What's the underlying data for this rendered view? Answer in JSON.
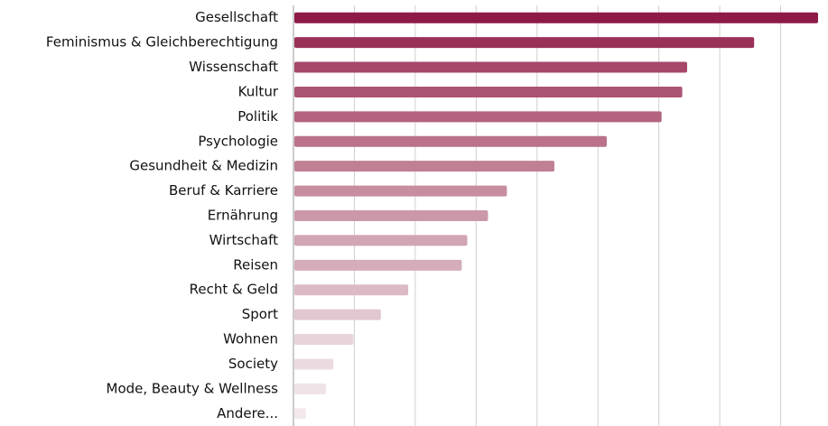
{
  "chart_data": {
    "type": "bar",
    "orientation": "horizontal",
    "categories": [
      "Gesellschaft",
      "Feminismus & Gleichberechtigung",
      "Wissenschaft",
      "Kultur",
      "Politik",
      "Psychologie",
      "Gesundheit & Medizin",
      "Beruf & Karriere",
      "Ernährung",
      "Wirtschaft",
      "Reisen",
      "Recht & Geld",
      "Sport",
      "Wohnen",
      "Society",
      "Mode, Beauty & Wellness",
      "Andere..."
    ],
    "values": [
      8.6,
      7.55,
      6.45,
      6.37,
      6.03,
      5.13,
      4.27,
      3.49,
      3.18,
      2.84,
      2.75,
      1.87,
      1.42,
      0.97,
      0.64,
      0.52,
      0.19
    ],
    "colors": [
      "#8e1a48",
      "#9a3158",
      "#a5466a",
      "#ab5475",
      "#b3627f",
      "#ba7189",
      "#c08093",
      "#c68e9f",
      "#cb98a8",
      "#d1a5b3",
      "#d5adba",
      "#dbbac5",
      "#e1c7d0",
      "#e7d3da",
      "#ebdbe1",
      "#efe2e7",
      "#f3e9ed"
    ],
    "xlim": [
      0,
      8.6
    ],
    "xticks": [
      0,
      1,
      2,
      3,
      4,
      5,
      6,
      7,
      8
    ],
    "grid": true
  }
}
